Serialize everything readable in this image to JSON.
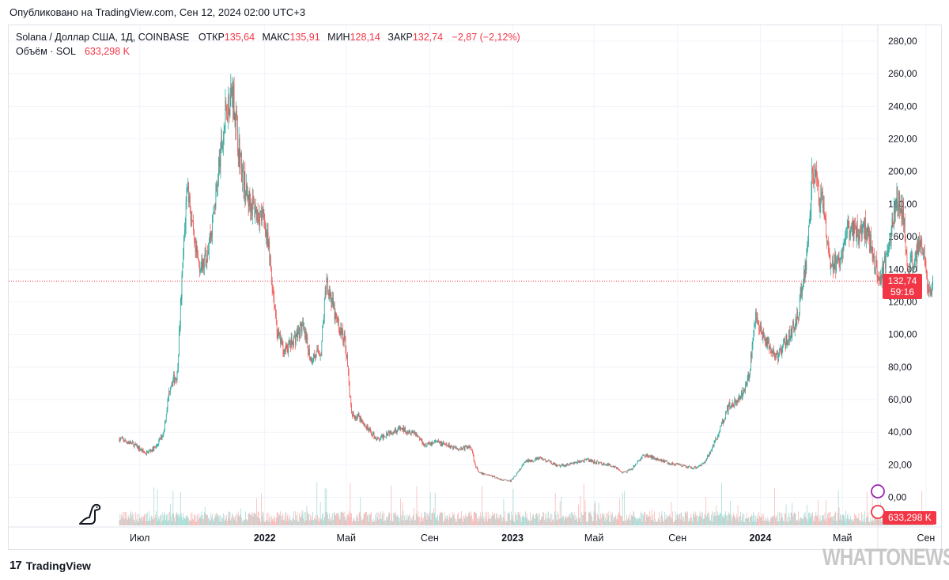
{
  "published": "Опубликовано на TradingView.com, Сен 12, 2024 02:00 UTC+3",
  "legend": {
    "symbol": "Solana / Доллар США, 1Д, COINBASE",
    "open_label": "ОТКР",
    "open": "135,64",
    "high_label": "МАКС",
    "high": "135,91",
    "low_label": "МИН",
    "low": "128,14",
    "close_label": "ЗАКР",
    "close": "132,74",
    "change": "−2,87 (−2,12%)",
    "volume_label": "Объём · SOL",
    "volume": "633,298 K"
  },
  "price_badge": {
    "price": "132,74",
    "countdown": "59:16"
  },
  "volume_badge": "633,298 K",
  "footer": {
    "brand": "TradingView"
  },
  "watermark": "WHATTONEWS.RU",
  "colors": {
    "up": "#26a69a",
    "down": "#ef5350",
    "badge": "#f23645",
    "grid": "#f0f3fa"
  },
  "chart_data": {
    "type": "line",
    "title": "Solana / Доллар США, 1Д, COINBASE",
    "x": [
      "2021-06-01",
      "2021-06-20",
      "2021-07-10",
      "2021-07-25",
      "2021-08-05",
      "2021-08-15",
      "2021-08-25",
      "2021-09-02",
      "2021-09-09",
      "2021-09-20",
      "2021-10-01",
      "2021-10-15",
      "2021-10-25",
      "2021-11-06",
      "2021-11-15",
      "2021-11-25",
      "2021-12-05",
      "2021-12-20",
      "2022-01-01",
      "2022-01-10",
      "2022-01-20",
      "2022-01-30",
      "2022-02-10",
      "2022-02-25",
      "2022-03-10",
      "2022-03-25",
      "2022-04-02",
      "2022-04-15",
      "2022-04-30",
      "2022-05-09",
      "2022-05-20",
      "2022-06-01",
      "2022-06-18",
      "2022-07-01",
      "2022-07-20",
      "2022-08-10",
      "2022-08-25",
      "2022-09-10",
      "2022-09-25",
      "2022-10-15",
      "2022-11-01",
      "2022-11-07",
      "2022-11-12",
      "2022-11-25",
      "2022-12-15",
      "2022-12-29",
      "2023-01-10",
      "2023-01-20",
      "2023-02-10",
      "2023-03-01",
      "2023-03-10",
      "2023-04-01",
      "2023-04-20",
      "2023-05-10",
      "2023-06-01",
      "2023-06-12",
      "2023-06-25",
      "2023-07-13",
      "2023-08-01",
      "2023-08-20",
      "2023-09-10",
      "2023-09-25",
      "2023-10-10",
      "2023-10-25",
      "2023-11-05",
      "2023-11-15",
      "2023-12-01",
      "2023-12-15",
      "2023-12-25",
      "2024-01-10",
      "2024-01-25",
      "2024-02-10",
      "2024-02-25",
      "2024-03-10",
      "2024-03-18",
      "2024-04-01",
      "2024-04-13",
      "2024-04-25",
      "2024-05-10",
      "2024-05-20",
      "2024-06-05",
      "2024-06-25",
      "2024-07-05",
      "2024-07-20",
      "2024-07-29",
      "2024-08-05",
      "2024-08-15",
      "2024-08-25",
      "2024-09-06",
      "2024-09-11"
    ],
    "close": [
      36,
      33,
      27,
      31,
      40,
      70,
      75,
      140,
      195,
      150,
      140,
      165,
      200,
      240,
      250,
      210,
      185,
      175,
      170,
      140,
      100,
      90,
      95,
      105,
      85,
      90,
      135,
      110,
      95,
      50,
      50,
      42,
      35,
      40,
      42,
      40,
      32,
      34,
      32,
      30,
      31,
      20,
      15,
      14,
      11,
      10,
      16,
      22,
      24,
      21,
      19,
      21,
      23,
      21,
      19,
      15,
      17,
      26,
      24,
      21,
      19,
      18,
      21,
      33,
      45,
      56,
      60,
      74,
      110,
      95,
      85,
      98,
      110,
      150,
      200,
      180,
      140,
      145,
      165,
      165,
      165,
      135,
      145,
      185,
      175,
      140,
      145,
      160,
      125,
      132.74
    ],
    "y_axis_ticks": [
      "280,00",
      "260,00",
      "240,00",
      "220,00",
      "200,00",
      "180,00",
      "160,00",
      "140,00",
      "120,00",
      "100,00",
      "80,00",
      "60,00",
      "40,00",
      "20,00",
      "0,00"
    ],
    "x_axis_ticks": [
      "Июл",
      "2022",
      "Май",
      "Сен",
      "2023",
      "Май",
      "Сен",
      "2024",
      "Май",
      "Сен"
    ],
    "ylim": [
      0,
      285
    ],
    "last_price": 132.74,
    "volume_series": {
      "name": "Объём · SOL",
      "last": "633,298 K"
    },
    "grid": true
  }
}
